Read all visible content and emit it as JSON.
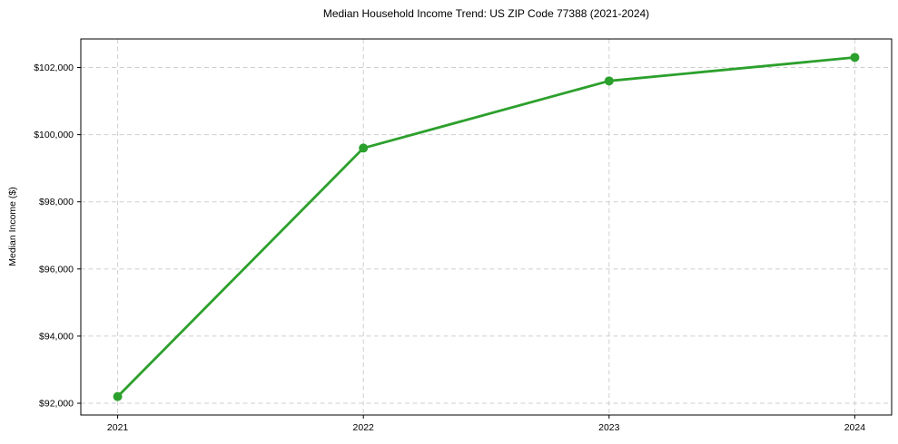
{
  "chart_data": {
    "type": "line",
    "title": "Median Household Income Trend: US ZIP Code 77388 (2021-2024)",
    "xlabel": "",
    "ylabel": "Median Income ($)",
    "x": [
      2021,
      2022,
      2023,
      2024
    ],
    "series": [
      {
        "name": "Median Household Income",
        "values": [
          92200,
          99600,
          101600,
          102300
        ]
      }
    ],
    "x_tick_labels": [
      "2021",
      "2022",
      "2023",
      "2024"
    ],
    "y_ticks": [
      92000,
      94000,
      96000,
      98000,
      100000,
      102000
    ],
    "y_tick_labels": [
      "$92,000",
      "$94,000",
      "$96,000",
      "$98,000",
      "$100,000",
      "$102,000"
    ],
    "xlim": [
      2020.85,
      2024.15
    ],
    "ylim": [
      91650,
      102850
    ],
    "grid": true,
    "grid_style": "dashed",
    "legend": "none",
    "colors": {
      "line": "#2ca02c",
      "marker": "#2ca02c",
      "grid": "#cfcfcf",
      "spine": "#000000",
      "tick": "#000000",
      "text": "#000000",
      "background": "#ffffff"
    }
  }
}
